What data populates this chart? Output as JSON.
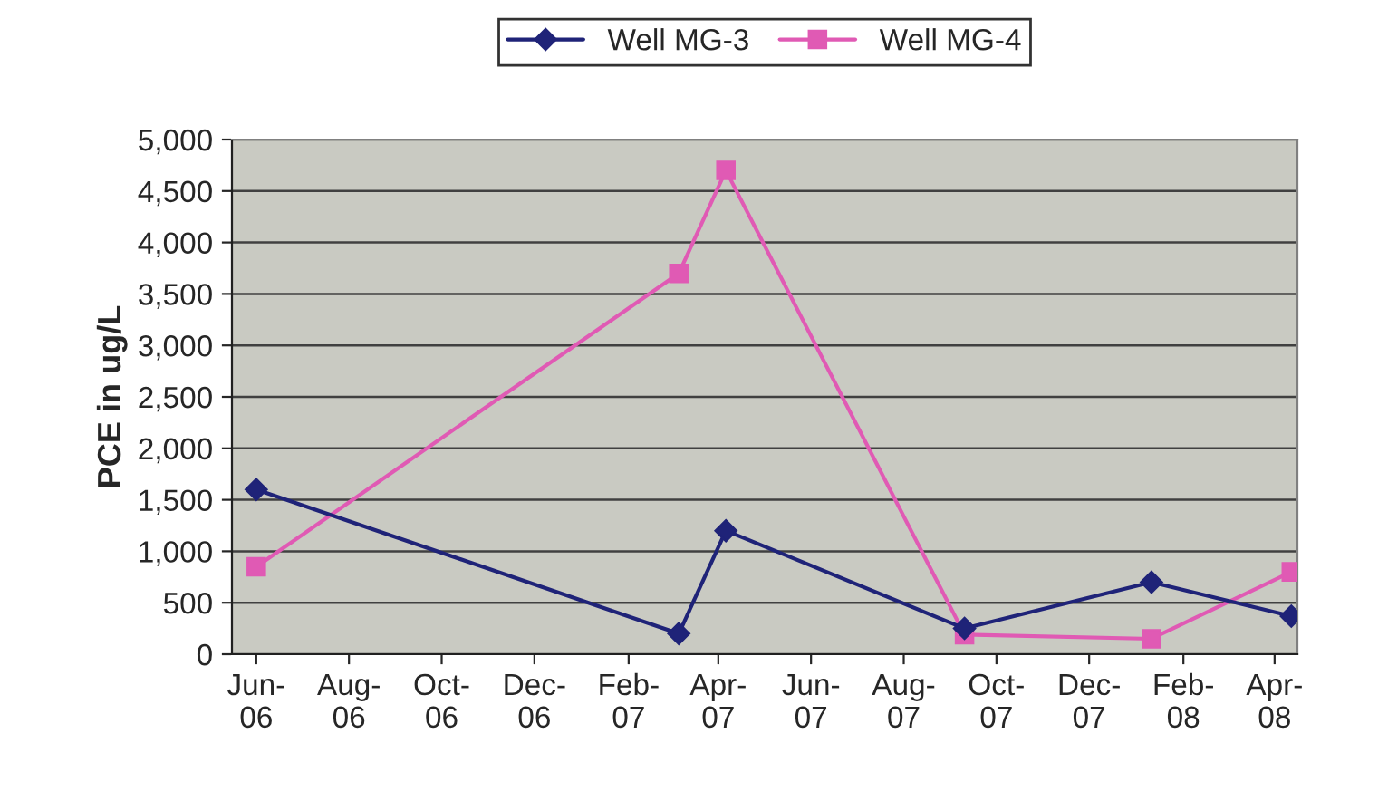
{
  "chart_data": {
    "type": "line",
    "ylabel": "PCE in ug/L",
    "xlim": [
      "2006-05-16",
      "2008-04-16"
    ],
    "xticks": [
      {
        "value": "2006-06-01",
        "label": "Jun-\n06"
      },
      {
        "value": "2006-08-01",
        "label": "Aug-\n06"
      },
      {
        "value": "2006-10-01",
        "label": "Oct-\n06"
      },
      {
        "value": "2006-12-01",
        "label": "Dec-\n06"
      },
      {
        "value": "2007-02-01",
        "label": "Feb-\n07"
      },
      {
        "value": "2007-04-01",
        "label": "Apr-\n07"
      },
      {
        "value": "2007-06-01",
        "label": "Jun-\n07"
      },
      {
        "value": "2007-08-01",
        "label": "Aug-\n07"
      },
      {
        "value": "2007-10-01",
        "label": "Oct-\n07"
      },
      {
        "value": "2007-12-01",
        "label": "Dec-\n07"
      },
      {
        "value": "2008-02-01",
        "label": "Feb-\n08"
      },
      {
        "value": "2008-04-01",
        "label": "Apr-\n08"
      }
    ],
    "ylim": [
      0,
      5000
    ],
    "yticks": [
      0,
      500,
      {
        "value": 1000,
        "label": "1,000"
      },
      {
        "value": 1500,
        "label": "1,500"
      },
      {
        "value": 2000,
        "label": "2,000"
      },
      {
        "value": 2500,
        "label": "2,500"
      },
      {
        "value": 3000,
        "label": "3,000"
      },
      {
        "value": 3500,
        "label": "3,500"
      },
      {
        "value": 4000,
        "label": "4,000"
      },
      {
        "value": 4500,
        "label": "4,500"
      },
      {
        "value": 5000,
        "label": "5,000"
      }
    ],
    "grid": "y",
    "legend": "top",
    "line_style": "solid",
    "series": [
      {
        "name": "Well MG-3",
        "color": "#1f2378",
        "marker": "diamond",
        "x": [
          "2006-06-01",
          "2007-03-06",
          "2007-04-06",
          "2007-09-10",
          "2008-01-11",
          "2008-04-12"
        ],
        "values": [
          1600,
          200,
          1200,
          250,
          700,
          370
        ]
      },
      {
        "name": "Well MG-4",
        "color": "#e05ab4",
        "marker": "square",
        "x": [
          "2006-06-01",
          "2007-03-06",
          "2007-04-06",
          "2007-09-10",
          "2008-01-11",
          "2008-04-12"
        ],
        "values": [
          850,
          3700,
          4700,
          190,
          150,
          800
        ]
      }
    ]
  }
}
